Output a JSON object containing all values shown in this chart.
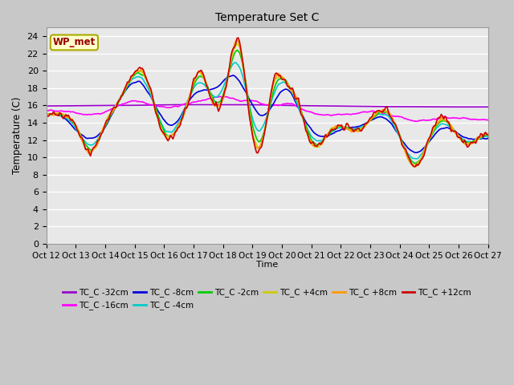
{
  "title": "Temperature Set C",
  "xlabel": "Time",
  "ylabel": "Temperature (C)",
  "ylim": [
    0,
    25
  ],
  "yticks": [
    0,
    2,
    4,
    6,
    8,
    10,
    12,
    14,
    16,
    18,
    20,
    22,
    24
  ],
  "x_labels": [
    "Oct 12",
    "Oct 13",
    "Oct 14",
    "Oct 15",
    "Oct 16",
    "Oct 17",
    "Oct 18",
    "Oct 19",
    "Oct 20",
    "Oct 21",
    "Oct 22",
    "Oct 23",
    "Oct 24",
    "Oct 25",
    "Oct 26",
    "Oct 27"
  ],
  "annotation_text": "WP_met",
  "fig_bg_color": "#c8c8c8",
  "plot_bg_color": "#e8e8e8",
  "grid_color": "#ffffff",
  "series_colors": {
    "TC_C -32cm": "#9900cc",
    "TC_C -16cm": "#ff00ff",
    "TC_C -8cm": "#0000dd",
    "TC_C -4cm": "#00cccc",
    "TC_C -2cm": "#00cc00",
    "TC_C +4cm": "#cccc00",
    "TC_C +8cm": "#ff9900",
    "TC_C +12cm": "#cc0000"
  },
  "legend_order": [
    "TC_C -32cm",
    "TC_C -16cm",
    "TC_C -8cm",
    "TC_C -4cm",
    "TC_C -2cm",
    "TC_C +4cm",
    "TC_C +8cm",
    "TC_C +12cm"
  ],
  "linewidth": 1.2
}
